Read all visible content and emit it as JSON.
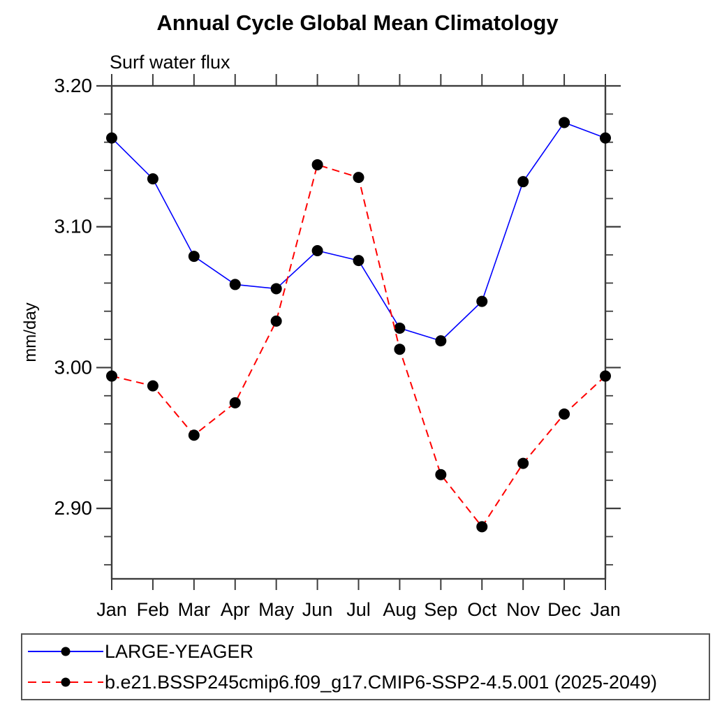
{
  "title": "Annual Cycle Global Mean Climatology",
  "chart_data": {
    "type": "line",
    "title": "Annual Cycle Global Mean Climatology",
    "subtitle": "Surf water flux",
    "ylabel": "mm/day",
    "xlabel": "",
    "grid": false,
    "legend_position": "bottom",
    "categories": [
      "Jan",
      "Feb",
      "Mar",
      "Apr",
      "May",
      "Jun",
      "Jul",
      "Aug",
      "Sep",
      "Oct",
      "Nov",
      "Dec",
      "Jan"
    ],
    "ylim": [
      2.85,
      3.2
    ],
    "yticks_major": [
      3.2,
      3.1,
      3.0,
      2.9
    ],
    "ytick_labels": [
      "3.20",
      "3.10",
      "3.00",
      "2.90"
    ],
    "ytick_minor_step": 0.02,
    "marker": "filled-circle",
    "marker_color": "#000000",
    "series": [
      {
        "name": "LARGE-YEAGER",
        "color": "#0000ff",
        "style": "solid",
        "values": [
          3.163,
          3.134,
          3.079,
          3.059,
          3.056,
          3.083,
          3.076,
          3.028,
          3.019,
          3.047,
          3.132,
          3.174,
          3.163
        ]
      },
      {
        "name": "b.e21.BSSP245cmip6.f09_g17.CMIP6-SSP2-4.5.001 (2025-2049)",
        "color": "#ff0000",
        "style": "dashed",
        "values": [
          2.994,
          2.987,
          2.952,
          2.975,
          3.033,
          3.144,
          3.135,
          3.013,
          2.924,
          2.887,
          2.932,
          2.967,
          2.994
        ]
      }
    ]
  }
}
